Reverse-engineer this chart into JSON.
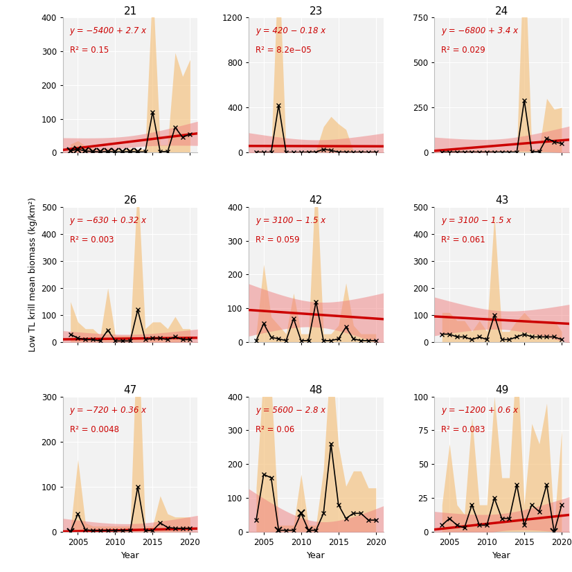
{
  "panels": [
    {
      "id": "21",
      "years": [
        2004,
        2005,
        2006,
        2007,
        2008,
        2009,
        2010,
        2011,
        2012,
        2013,
        2014,
        2015,
        2016,
        2017,
        2018,
        2019,
        2020
      ],
      "mean": [
        5,
        10,
        5,
        3,
        2,
        3,
        2,
        2,
        3,
        2,
        2,
        120,
        3,
        3,
        75,
        45,
        55
      ],
      "sd": [
        20,
        25,
        15,
        10,
        8,
        10,
        8,
        8,
        10,
        8,
        8,
        380,
        20,
        20,
        220,
        180,
        220
      ],
      "low_n_years": [
        2004,
        2005,
        2006,
        2007,
        2008,
        2009,
        2010,
        2011,
        2012,
        2013
      ],
      "eq": "y = −5400 + 2.7 x",
      "r2": "R² = 0.15",
      "ylim": [
        0,
        400
      ],
      "yticks": [
        0,
        100,
        200,
        300,
        400
      ],
      "trend_intercept": -5400,
      "trend_slope": 2.7
    },
    {
      "id": "23",
      "years": [
        2004,
        2005,
        2006,
        2007,
        2008,
        2009,
        2010,
        2011,
        2012,
        2013,
        2014,
        2015,
        2016,
        2017,
        2018,
        2019,
        2020
      ],
      "mean": [
        5,
        3,
        2,
        420,
        2,
        2,
        2,
        5,
        5,
        30,
        20,
        5,
        5,
        3,
        5,
        3,
        5
      ],
      "sd": [
        15,
        10,
        8,
        1350,
        8,
        8,
        8,
        15,
        15,
        200,
        300,
        250,
        200,
        10,
        15,
        10,
        15
      ],
      "low_n_years": [],
      "eq": "y = 420 − 0.18 x",
      "r2": "R² = 8.2e−05",
      "ylim": [
        0,
        1200
      ],
      "yticks": [
        0,
        400,
        800,
        1200
      ],
      "trend_intercept": 420,
      "trend_slope": -0.18
    },
    {
      "id": "24",
      "years": [
        2004,
        2005,
        2006,
        2007,
        2008,
        2009,
        2010,
        2011,
        2012,
        2013,
        2014,
        2015,
        2016,
        2017,
        2018,
        2019,
        2020
      ],
      "mean": [
        3,
        3,
        3,
        3,
        3,
        3,
        3,
        3,
        3,
        3,
        3,
        290,
        5,
        5,
        80,
        60,
        50
      ],
      "sd": [
        10,
        10,
        10,
        10,
        10,
        10,
        10,
        10,
        10,
        10,
        10,
        900,
        15,
        15,
        220,
        180,
        200
      ],
      "low_n_years": [],
      "eq": "y = −6800 + 3.4 x",
      "r2": "R² = 0.029",
      "ylim": [
        0,
        750
      ],
      "yticks": [
        0,
        250,
        500,
        750
      ],
      "trend_intercept": -6800,
      "trend_slope": 3.4
    },
    {
      "id": "26",
      "years": [
        2004,
        2005,
        2006,
        2007,
        2008,
        2009,
        2010,
        2011,
        2012,
        2013,
        2014,
        2015,
        2016,
        2017,
        2018,
        2019,
        2020
      ],
      "mean": [
        30,
        15,
        10,
        10,
        5,
        45,
        5,
        5,
        5,
        120,
        10,
        15,
        15,
        10,
        20,
        10,
        10
      ],
      "sd": [
        120,
        60,
        40,
        40,
        20,
        155,
        20,
        20,
        20,
        480,
        40,
        60,
        60,
        40,
        75,
        40,
        40
      ],
      "low_n_years": [],
      "eq": "y = −630 + 0.32 x",
      "r2": "R² = 0.003",
      "ylim": [
        0,
        500
      ],
      "yticks": [
        0,
        100,
        200,
        300,
        400,
        500
      ],
      "trend_intercept": -630,
      "trend_slope": 0.32
    },
    {
      "id": "42",
      "years": [
        2004,
        2005,
        2006,
        2007,
        2008,
        2009,
        2010,
        2011,
        2012,
        2013,
        2014,
        2015,
        2016,
        2017,
        2018,
        2019,
        2020
      ],
      "mean": [
        5,
        55,
        15,
        10,
        5,
        70,
        5,
        5,
        120,
        5,
        5,
        10,
        45,
        10,
        5,
        5,
        5
      ],
      "sd": [
        20,
        175,
        60,
        40,
        20,
        75,
        20,
        20,
        390,
        20,
        20,
        40,
        130,
        40,
        20,
        20,
        20
      ],
      "low_n_years": [],
      "eq": "y = 3100 − 1.5 x",
      "r2": "R² = 0.059",
      "ylim": [
        0,
        400
      ],
      "yticks": [
        0,
        100,
        200,
        300,
        400
      ],
      "trend_intercept": 3100,
      "trend_slope": -1.5
    },
    {
      "id": "43",
      "years": [
        2004,
        2005,
        2006,
        2007,
        2008,
        2009,
        2010,
        2011,
        2012,
        2013,
        2014,
        2015,
        2016,
        2017,
        2018,
        2019,
        2020
      ],
      "mean": [
        30,
        30,
        20,
        20,
        10,
        20,
        10,
        100,
        10,
        10,
        20,
        30,
        20,
        20,
        20,
        20,
        10
      ],
      "sd": [
        80,
        80,
        60,
        60,
        30,
        60,
        30,
        370,
        30,
        30,
        60,
        80,
        60,
        60,
        60,
        60,
        30
      ],
      "low_n_years": [],
      "eq": "y = 3100 − 1.5 x",
      "r2": "R² = 0.061",
      "ylim": [
        0,
        500
      ],
      "yticks": [
        0,
        100,
        200,
        300,
        400,
        500
      ],
      "trend_intercept": 3100,
      "trend_slope": -1.5
    },
    {
      "id": "47",
      "years": [
        2004,
        2005,
        2006,
        2007,
        2008,
        2009,
        2010,
        2011,
        2012,
        2013,
        2014,
        2015,
        2016,
        2017,
        2018,
        2019,
        2020
      ],
      "mean": [
        0,
        40,
        5,
        3,
        3,
        3,
        3,
        3,
        3,
        100,
        3,
        3,
        20,
        10,
        8,
        8,
        8
      ],
      "sd": [
        5,
        120,
        15,
        10,
        10,
        10,
        10,
        10,
        10,
        380,
        10,
        10,
        60,
        30,
        25,
        25,
        25
      ],
      "low_n_years": [
        2004
      ],
      "eq": "y = −720 + 0.36 x",
      "r2": "R² = 0.0048",
      "ylim": [
        0,
        300
      ],
      "yticks": [
        0,
        100,
        200,
        300
      ],
      "trend_intercept": -720,
      "trend_slope": 0.36
    },
    {
      "id": "48",
      "years": [
        2004,
        2005,
        2006,
        2007,
        2008,
        2009,
        2010,
        2011,
        2012,
        2013,
        2014,
        2015,
        2016,
        2017,
        2018,
        2019,
        2020
      ],
      "mean": [
        35,
        170,
        160,
        5,
        5,
        5,
        55,
        5,
        5,
        55,
        260,
        80,
        40,
        55,
        55,
        35,
        35
      ],
      "sd": [
        95,
        305,
        285,
        15,
        15,
        15,
        115,
        15,
        15,
        130,
        280,
        175,
        95,
        125,
        125,
        95,
        95
      ],
      "low_n_years": [
        2007,
        2010,
        2011
      ],
      "eq": "y = 5600 − 2.8 x",
      "r2": "R² = 0.06",
      "ylim": [
        0,
        400
      ],
      "yticks": [
        0,
        100,
        200,
        300,
        400
      ],
      "trend_intercept": 5600,
      "trend_slope": -2.8
    },
    {
      "id": "49",
      "years": [
        2004,
        2005,
        2006,
        2007,
        2008,
        2009,
        2010,
        2011,
        2012,
        2013,
        2014,
        2015,
        2016,
        2017,
        2018,
        2019,
        2020
      ],
      "mean": [
        5,
        10,
        5,
        3,
        20,
        5,
        5,
        25,
        10,
        10,
        35,
        5,
        20,
        15,
        35,
        0,
        20
      ],
      "sd": [
        15,
        55,
        15,
        10,
        65,
        15,
        15,
        75,
        30,
        30,
        100,
        15,
        60,
        50,
        60,
        5,
        55
      ],
      "low_n_years": [
        2019
      ],
      "eq": "y = −1200 + 0.6 x",
      "r2": "R² = 0.083",
      "ylim": [
        0,
        100
      ],
      "yticks": [
        0,
        25,
        50,
        75,
        100
      ],
      "trend_intercept": -1200,
      "trend_slope": 0.6
    }
  ],
  "xlim": [
    2003,
    2021
  ],
  "xticks": [
    2005,
    2010,
    2015,
    2020
  ],
  "sd_color": "#F5C07A",
  "sd_alpha": 0.65,
  "ci_color": "#F08080",
  "ci_alpha": 0.5,
  "trend_color": "#CC0000",
  "line_color": "black",
  "bg_color": "#F2F2F2",
  "grid_color": "white",
  "ylabel": "Low TL krill mean biomass (kg/km²)",
  "xlabel": "Year",
  "title_fontsize": 11,
  "label_fontsize": 9,
  "eq_fontsize": 8.5
}
